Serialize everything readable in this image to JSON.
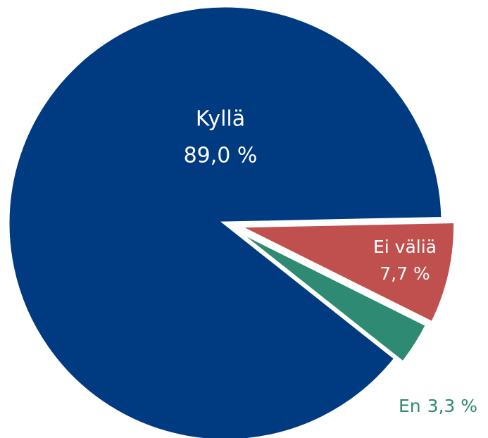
{
  "chart_data": {
    "type": "pie",
    "categories": [
      "Kyllä",
      "Ei väliä",
      "En"
    ],
    "values": [
      89.0,
      7.7,
      3.3
    ],
    "value_labels": [
      "89,0 %",
      "7,7 %",
      "3,3 %"
    ],
    "colors": [
      "#003a80",
      "#c0504d",
      "#2e8a72"
    ]
  }
}
